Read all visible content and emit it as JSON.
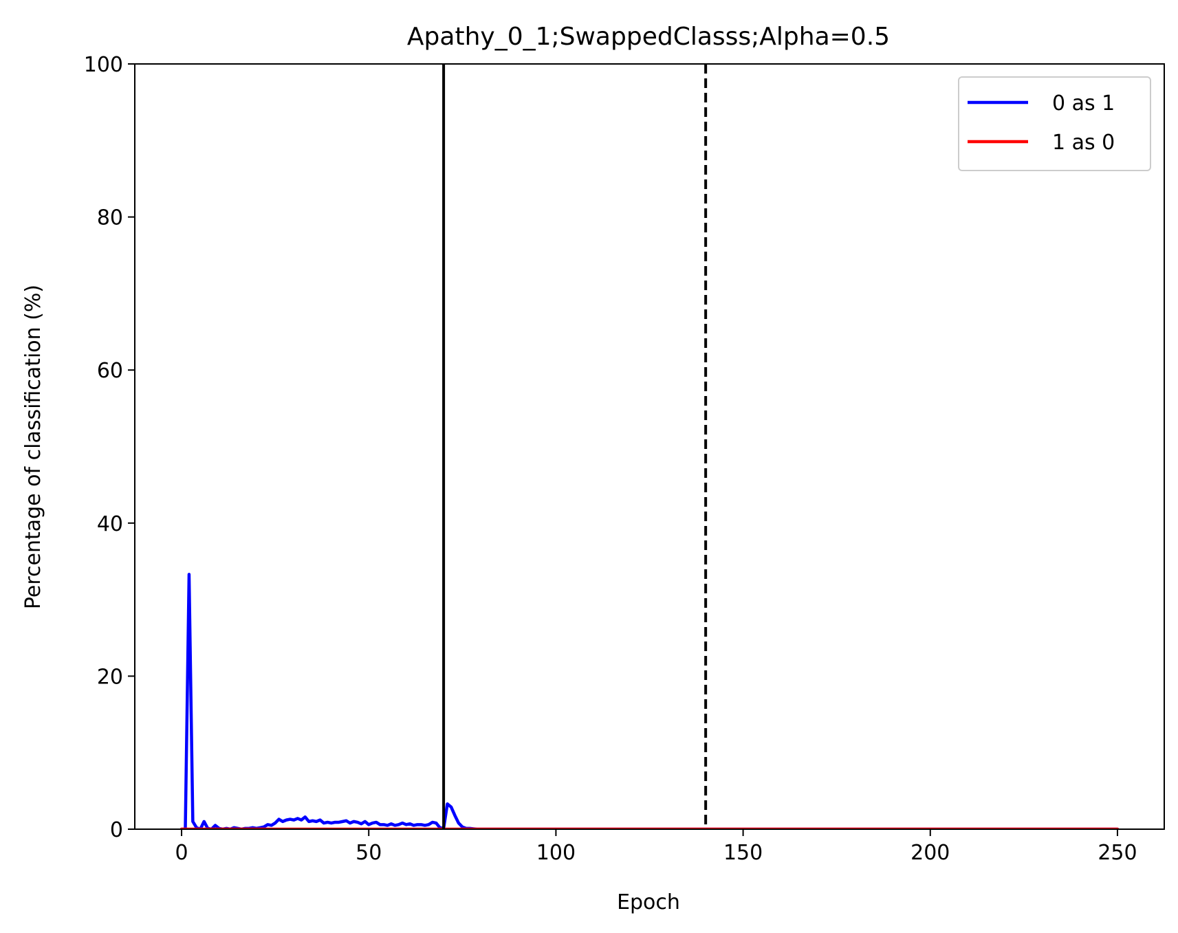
{
  "chart_data": {
    "type": "line",
    "title": "Apathy_0_1;SwappedClasss;Alpha=0.5",
    "xlabel": "Epoch",
    "ylabel": "Percentage of classification (%)",
    "xlim": [
      -12.5,
      262.5
    ],
    "ylim": [
      0,
      100
    ],
    "xticks": [
      0,
      50,
      100,
      150,
      200,
      250
    ],
    "yticks": [
      0,
      20,
      40,
      60,
      80,
      100
    ],
    "grid": false,
    "legend_position": "top-right",
    "vlines": [
      {
        "x": 70,
        "style": "solid",
        "color": "#000000"
      },
      {
        "x": 140,
        "style": "dashed",
        "color": "#000000"
      }
    ],
    "series": [
      {
        "name": "0 as 1",
        "color": "#0000ff",
        "points": [
          [
            0,
            0
          ],
          [
            1,
            0
          ],
          [
            2,
            33.3
          ],
          [
            3,
            1.0
          ],
          [
            4,
            0.2
          ],
          [
            5,
            0
          ],
          [
            6,
            1.0
          ],
          [
            7,
            0.1
          ],
          [
            8,
            0
          ],
          [
            9,
            0.5
          ],
          [
            10,
            0.1
          ],
          [
            11,
            0
          ],
          [
            12,
            0.1
          ],
          [
            13,
            0
          ],
          [
            14,
            0.2
          ],
          [
            15,
            0.1
          ],
          [
            16,
            0
          ],
          [
            17,
            0.1
          ],
          [
            18,
            0.1
          ],
          [
            19,
            0.2
          ],
          [
            20,
            0.1
          ],
          [
            21,
            0.2
          ],
          [
            22,
            0.3
          ],
          [
            23,
            0.6
          ],
          [
            24,
            0.5
          ],
          [
            25,
            0.8
          ],
          [
            26,
            1.3
          ],
          [
            27,
            1.0
          ],
          [
            28,
            1.2
          ],
          [
            29,
            1.3
          ],
          [
            30,
            1.2
          ],
          [
            31,
            1.4
          ],
          [
            32,
            1.2
          ],
          [
            33,
            1.6
          ],
          [
            34,
            1.0
          ],
          [
            35,
            1.1
          ],
          [
            36,
            1.0
          ],
          [
            37,
            1.2
          ],
          [
            38,
            0.8
          ],
          [
            39,
            0.9
          ],
          [
            40,
            0.8
          ],
          [
            41,
            0.9
          ],
          [
            42,
            0.9
          ],
          [
            43,
            1.0
          ],
          [
            44,
            1.1
          ],
          [
            45,
            0.8
          ],
          [
            46,
            1.0
          ],
          [
            47,
            0.9
          ],
          [
            48,
            0.7
          ],
          [
            49,
            1.0
          ],
          [
            50,
            0.6
          ],
          [
            51,
            0.8
          ],
          [
            52,
            0.9
          ],
          [
            53,
            0.6
          ],
          [
            54,
            0.6
          ],
          [
            55,
            0.5
          ],
          [
            56,
            0.7
          ],
          [
            57,
            0.5
          ],
          [
            58,
            0.6
          ],
          [
            59,
            0.8
          ],
          [
            60,
            0.6
          ],
          [
            61,
            0.7
          ],
          [
            62,
            0.5
          ],
          [
            63,
            0.6
          ],
          [
            64,
            0.6
          ],
          [
            65,
            0.5
          ],
          [
            66,
            0.6
          ],
          [
            67,
            0.9
          ],
          [
            68,
            0.8
          ],
          [
            69,
            0.2
          ],
          [
            70,
            0.1
          ],
          [
            71,
            3.3
          ],
          [
            72,
            2.9
          ],
          [
            73,
            1.8
          ],
          [
            74,
            0.8
          ],
          [
            75,
            0.3
          ],
          [
            76,
            0.1
          ],
          [
            77,
            0.1
          ],
          [
            78,
            0.05
          ],
          [
            79,
            0
          ],
          [
            80,
            0
          ],
          [
            100,
            0
          ],
          [
            150,
            0
          ],
          [
            200,
            0
          ],
          [
            250,
            0
          ]
        ]
      },
      {
        "name": "1 as 0",
        "color": "#ff0000",
        "points": [
          [
            0,
            0
          ],
          [
            250,
            0
          ]
        ]
      }
    ]
  }
}
